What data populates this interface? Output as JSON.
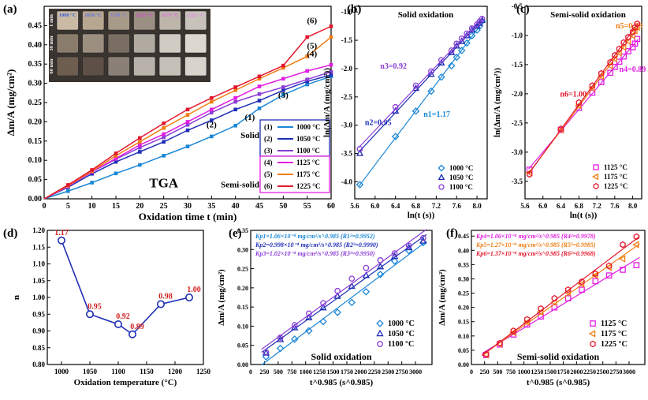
{
  "chart_data": [
    {
      "panel": "(a)",
      "type": "line",
      "xlabel": "Oxidation time t (min)",
      "ylabel": "Δm/A (mg/cm²)",
      "xlim": [
        0,
        60
      ],
      "ylim": [
        0,
        0.5
      ],
      "xticks": [
        "0",
        "5",
        "10",
        "15",
        "20",
        "25",
        "30",
        "35",
        "40",
        "45",
        "50",
        "55",
        "60"
      ],
      "yticks": [
        "0.00",
        "0.05",
        "0.10",
        "0.15",
        "0.20",
        "0.25",
        "0.30",
        "0.35",
        "0.40",
        "0.45"
      ],
      "annotation": "TGA",
      "inset_columns": [
        "1000 °C",
        "1050 °C",
        "1100 °C",
        "1125 °C",
        "1175 °C",
        "1225 °C"
      ],
      "inset_rows": [
        "1 min",
        "30 min",
        "60 min"
      ],
      "group_labels": [
        "Solid",
        "Semi-solid"
      ],
      "x": [
        0,
        5,
        10,
        15,
        20,
        25,
        30,
        35,
        40,
        45,
        50,
        55,
        60
      ],
      "series": [
        {
          "name": "1000 °C",
          "tag": "(1)",
          "color": "#1a87d6",
          "values": [
            0,
            0.02,
            0.042,
            0.066,
            0.088,
            0.112,
            0.136,
            0.162,
            0.19,
            0.235,
            0.27,
            0.297,
            0.318
          ]
        },
        {
          "name": "1050 °C",
          "tag": "(2)",
          "color": "#1f2fb5",
          "values": [
            0,
            0.03,
            0.065,
            0.096,
            0.122,
            0.148,
            0.178,
            0.204,
            0.232,
            0.255,
            0.282,
            0.305,
            0.322
          ]
        },
        {
          "name": "1100 °C",
          "tag": "(3)",
          "color": "#8a3dd6",
          "values": [
            0,
            0.032,
            0.07,
            0.103,
            0.133,
            0.16,
            0.192,
            0.224,
            0.252,
            0.272,
            0.29,
            0.31,
            0.33
          ]
        },
        {
          "name": "1125 °C",
          "tag": "(4)",
          "color": "#e21ee0",
          "values": [
            0,
            0.033,
            0.07,
            0.105,
            0.14,
            0.168,
            0.2,
            0.232,
            0.262,
            0.292,
            0.312,
            0.332,
            0.348
          ]
        },
        {
          "name": "1175 °C",
          "tag": "(5)",
          "color": "#f07d11",
          "values": [
            0,
            0.034,
            0.072,
            0.112,
            0.148,
            0.184,
            0.218,
            0.252,
            0.282,
            0.312,
            0.34,
            0.37,
            0.42
          ]
        },
        {
          "name": "1225 °C",
          "tag": "(6)",
          "color": "#e3172d",
          "values": [
            0,
            0.036,
            0.075,
            0.118,
            0.158,
            0.196,
            0.232,
            0.262,
            0.29,
            0.318,
            0.346,
            0.42,
            0.448
          ]
        }
      ]
    },
    {
      "panel": "(b)",
      "type": "scatter",
      "title": "Solid oxidation",
      "xlabel": "ln(t (s))",
      "ylabel": "ln(Δm/A (mg/cm²))",
      "xlim": [
        5.6,
        8.2
      ],
      "ylim": [
        -4.3,
        -0.9
      ],
      "xticks": [
        "5.6",
        "6.0",
        "6.4",
        "6.8",
        "7.2",
        "7.6",
        "8.0"
      ],
      "yticks": [
        "-4.0",
        "-3.5",
        "-3.0",
        "-2.5",
        "-2.0",
        "-1.5",
        "-1.0"
      ],
      "x": [
        5.7,
        6.4,
        6.8,
        7.1,
        7.3,
        7.5,
        7.6,
        7.7,
        7.8,
        7.9,
        8.0,
        8.05,
        8.1
      ],
      "series": [
        {
          "name": "1000 °C",
          "n": "n1=1.17",
          "color": "#1a87d6",
          "marker": "diamond",
          "values": [
            -4.05,
            -3.2,
            -2.75,
            -2.4,
            -2.15,
            -1.95,
            -1.8,
            -1.68,
            -1.55,
            -1.42,
            -1.32,
            -1.25,
            -1.16
          ]
        },
        {
          "name": "1050 °C",
          "n": "n2=0.95",
          "color": "#1f2fb5",
          "marker": "triangle",
          "values": [
            -3.5,
            -2.75,
            -2.35,
            -2.1,
            -1.9,
            -1.72,
            -1.6,
            -1.52,
            -1.42,
            -1.32,
            -1.25,
            -1.2,
            -1.15
          ]
        },
        {
          "name": "1100 °C",
          "n": "n3=0.92",
          "color": "#8a3dd6",
          "marker": "circle",
          "values": [
            -3.42,
            -2.68,
            -2.3,
            -2.05,
            -1.85,
            -1.68,
            -1.56,
            -1.47,
            -1.38,
            -1.29,
            -1.22,
            -1.17,
            -1.12
          ]
        }
      ]
    },
    {
      "panel": "(c)",
      "type": "scatter",
      "title": "Semi-solid oxidation",
      "xlabel": "ln(t (s))",
      "ylabel": "ln(Δm/A (mg/cm²))",
      "xlim": [
        5.6,
        8.2
      ],
      "ylim": [
        -3.8,
        -0.5
      ],
      "xticks": [
        "5.6",
        "6.0",
        "6.4",
        "6.8",
        "7.2",
        "7.6",
        "8.0"
      ],
      "yticks": [
        "-3.5",
        "-3.0",
        "-2.5",
        "-2.0",
        "-1.5",
        "-1.0",
        "-0.5"
      ],
      "x": [
        5.7,
        6.4,
        6.8,
        7.1,
        7.3,
        7.5,
        7.6,
        7.7,
        7.8,
        7.9,
        8.0,
        8.05,
        8.1
      ],
      "series": [
        {
          "name": "1125 °C",
          "n": "n4=0.89",
          "color": "#e21ee0",
          "marker": "square",
          "values": [
            -3.3,
            -2.62,
            -2.24,
            -1.98,
            -1.8,
            -1.64,
            -1.54,
            -1.45,
            -1.36,
            -1.27,
            -1.2,
            -1.14,
            -1.06
          ]
        },
        {
          "name": "1175 °C",
          "n": "n5=0.98",
          "color": "#f07d11",
          "marker": "triangle-left",
          "values": [
            -3.35,
            -2.62,
            -2.2,
            -1.9,
            -1.7,
            -1.52,
            -1.4,
            -1.3,
            -1.2,
            -1.1,
            -1.0,
            -0.92,
            -0.86
          ]
        },
        {
          "name": "1225 °C",
          "n": "n6=1.00",
          "color": "#e3172d",
          "marker": "hexagon",
          "values": [
            -3.38,
            -2.6,
            -2.15,
            -1.86,
            -1.65,
            -1.46,
            -1.34,
            -1.23,
            -1.12,
            -1.03,
            -0.94,
            -0.86,
            -0.8
          ]
        }
      ]
    },
    {
      "panel": "(d)",
      "type": "line",
      "xlabel": "Oxidation temperature (°C)",
      "ylabel": "n",
      "xlim": [
        975,
        1250
      ],
      "ylim": [
        0.8,
        1.2
      ],
      "xticks": [
        "1000",
        "1050",
        "1100",
        "1150",
        "1200",
        "1250"
      ],
      "yticks": [
        "0.80",
        "0.85",
        "0.90",
        "0.95",
        "1.00",
        "1.05",
        "1.10",
        "1.15",
        "1.20"
      ],
      "x": [
        1000,
        1050,
        1100,
        1125,
        1175,
        1225
      ],
      "values": [
        1.17,
        0.95,
        0.92,
        0.89,
        0.98,
        1.0
      ],
      "labels": [
        "1.17",
        "0.95",
        "0.92",
        "0.89",
        "0.98",
        "1.00"
      ],
      "color": "#1f2fb5"
    },
    {
      "panel": "(e)",
      "type": "scatter",
      "xlabel": "t^0.985 (s^0.985)",
      "ylabel": "Δm/A (mg/cm²)",
      "annotation": "Solid oxidation",
      "xlim": [
        0,
        3300
      ],
      "ylim": [
        0,
        0.35
      ],
      "xticks": [
        "0",
        "250",
        "500",
        "750",
        "1000",
        "1250",
        "1500",
        "1750",
        "2000",
        "2250",
        "2500",
        "2750",
        "3000"
      ],
      "yticks": [
        "0.00",
        "0.05",
        "0.10",
        "0.15",
        "0.20",
        "0.25",
        "0.30",
        "0.35"
      ],
      "fits": [
        "Kp1=1.06×10⁻⁴ mg/cm²/s^0.985 (R1²=0.9952)",
        "Kp2=0.998×10⁻⁴ mg/cm²/s^0.985 (R2²=0.9990)",
        "Kp3=1.02×10⁻⁴ mg/cm²/s^0.985 (R3²=0.9950)"
      ],
      "x": [
        280,
        540,
        800,
        1060,
        1320,
        1580,
        1840,
        2100,
        2360,
        2620,
        2880,
        3140
      ],
      "series": [
        {
          "name": "1000 °C",
          "color": "#1a87d6",
          "marker": "diamond",
          "values": [
            0.02,
            0.042,
            0.066,
            0.088,
            0.112,
            0.136,
            0.162,
            0.19,
            0.235,
            0.27,
            0.297,
            0.318
          ]
        },
        {
          "name": "1050 °C",
          "color": "#1f2fb5",
          "marker": "triangle",
          "values": [
            0.03,
            0.065,
            0.096,
            0.122,
            0.148,
            0.178,
            0.204,
            0.232,
            0.255,
            0.282,
            0.305,
            0.322
          ]
        },
        {
          "name": "1100 °C",
          "color": "#8a3dd6",
          "marker": "circle",
          "values": [
            0.032,
            0.07,
            0.103,
            0.133,
            0.16,
            0.192,
            0.224,
            0.252,
            0.272,
            0.29,
            0.31,
            0.33
          ]
        }
      ]
    },
    {
      "panel": "(f)",
      "type": "scatter",
      "xlabel": "t^0.985 (s^0.985)",
      "ylabel": "Δm/A (mg/cm²)",
      "annotation": "Semi-solid oxidation",
      "xlim": [
        0,
        3300
      ],
      "ylim": [
        0,
        0.47
      ],
      "xticks": [
        "0",
        "250",
        "500",
        "750",
        "1000",
        "1250",
        "1500",
        "1750",
        "2000",
        "2250",
        "2500",
        "2750",
        "3000"
      ],
      "yticks": [
        "0.00",
        "0.05",
        "0.10",
        "0.15",
        "0.20",
        "0.25",
        "0.30",
        "0.35",
        "0.40",
        "0.45"
      ],
      "fits": [
        "Kp4=1.06×10⁻⁴ mg/cm²/s^0.985 (R4²=0.9978)",
        "Kp5=1.27×10⁻⁴ mg/cm²/s^0.985 (R5²=0.9985)",
        "Kp6=1.37×10⁻⁴ mg/cm²/s^0.985 (R6²=0.9968)"
      ],
      "x": [
        280,
        540,
        800,
        1060,
        1320,
        1580,
        1840,
        2100,
        2360,
        2620,
        2880,
        3140
      ],
      "series": [
        {
          "name": "1125 °C",
          "color": "#e21ee0",
          "marker": "square",
          "values": [
            0.033,
            0.07,
            0.105,
            0.14,
            0.168,
            0.2,
            0.232,
            0.262,
            0.292,
            0.312,
            0.332,
            0.348
          ]
        },
        {
          "name": "1175 °C",
          "color": "#f07d11",
          "marker": "triangle-left",
          "values": [
            0.034,
            0.072,
            0.112,
            0.148,
            0.184,
            0.218,
            0.252,
            0.282,
            0.312,
            0.34,
            0.37,
            0.42
          ]
        },
        {
          "name": "1225 °C",
          "color": "#e3172d",
          "marker": "hexagon",
          "values": [
            0.036,
            0.075,
            0.118,
            0.158,
            0.196,
            0.232,
            0.262,
            0.29,
            0.318,
            0.346,
            0.42,
            0.448
          ]
        }
      ]
    }
  ]
}
